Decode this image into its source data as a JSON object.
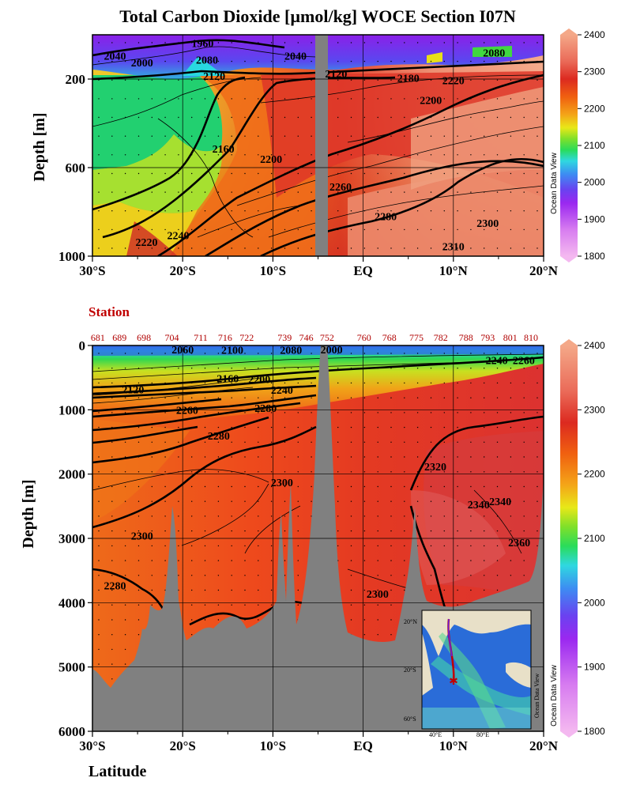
{
  "title": "Total Carbon Dioxide [µmol/kg]  WOCE Section I07N",
  "odv_label": "Ocean Data View",
  "latitude_label": "Latitude",
  "station_label": "Station",
  "chart_data": [
    {
      "type": "heatmap",
      "name": "upper",
      "ylabel": "Depth [m]",
      "x_ticks": [
        "30°S",
        "20°S",
        "10°S",
        "EQ",
        "10°N",
        "20°N"
      ],
      "x_tick_values": [
        -30,
        -20,
        -10,
        0,
        10,
        20
      ],
      "xlim": [
        -30,
        20
      ],
      "y_ticks": [
        "200",
        "600",
        "1000"
      ],
      "y_tick_values": [
        200,
        600,
        1000
      ],
      "ylim": [
        0,
        1000
      ],
      "contour_labels": [
        {
          "text": "1960",
          "x": -17.8,
          "y": 38
        },
        {
          "text": "2040",
          "x": -27.5,
          "y": 95
        },
        {
          "text": "2000",
          "x": -24.5,
          "y": 125
        },
        {
          "text": "2080",
          "x": -17.3,
          "y": 112
        },
        {
          "text": "2120",
          "x": -16.5,
          "y": 185
        },
        {
          "text": "2040",
          "x": -7.5,
          "y": 95
        },
        {
          "text": "2120",
          "x": -3,
          "y": 175
        },
        {
          "text": "2080",
          "x": 14.5,
          "y": 80
        },
        {
          "text": "2180",
          "x": 5,
          "y": 195
        },
        {
          "text": "2220",
          "x": 10,
          "y": 205
        },
        {
          "text": "2200",
          "x": 7.5,
          "y": 295
        },
        {
          "text": "2160",
          "x": -15.5,
          "y": 515
        },
        {
          "text": "2200",
          "x": -10.2,
          "y": 560
        },
        {
          "text": "2260",
          "x": -2.5,
          "y": 685
        },
        {
          "text": "2280",
          "x": 2.5,
          "y": 820
        },
        {
          "text": "2300",
          "x": 13.8,
          "y": 850
        },
        {
          "text": "2310",
          "x": 10,
          "y": 955
        },
        {
          "text": "2220",
          "x": -24,
          "y": 935
        },
        {
          "text": "2240",
          "x": -20.5,
          "y": 905
        }
      ],
      "colorbar": {
        "min": 1800,
        "max": 2400,
        "ticks": [
          1800,
          1900,
          2000,
          2100,
          2200,
          2300,
          2400
        ]
      }
    },
    {
      "type": "heatmap",
      "name": "lower",
      "ylabel": "Depth [m]",
      "x_ticks": [
        "30°S",
        "20°S",
        "10°S",
        "EQ",
        "10°N",
        "20°N"
      ],
      "x_tick_values": [
        -30,
        -20,
        -10,
        0,
        10,
        20
      ],
      "xlim": [
        -30,
        20
      ],
      "y_ticks": [
        "0",
        "1000",
        "2000",
        "3000",
        "4000",
        "5000",
        "6000"
      ],
      "y_tick_values": [
        0,
        1000,
        2000,
        3000,
        4000,
        5000,
        6000
      ],
      "ylim": [
        0,
        6000
      ],
      "stations": [
        {
          "label": "681",
          "lat": -29.4
        },
        {
          "label": "689",
          "lat": -27.0
        },
        {
          "label": "698",
          "lat": -24.3
        },
        {
          "label": "704",
          "lat": -21.2
        },
        {
          "label": "711",
          "lat": -18.0
        },
        {
          "label": "716",
          "lat": -15.3
        },
        {
          "label": "722",
          "lat": -12.9
        },
        {
          "label": "739",
          "lat": -8.7
        },
        {
          "label": "746",
          "lat": -6.3
        },
        {
          "label": "752",
          "lat": -4.0
        },
        {
          "label": "760",
          "lat": 0.1
        },
        {
          "label": "768",
          "lat": 2.9
        },
        {
          "label": "775",
          "lat": 5.9
        },
        {
          "label": "782",
          "lat": 8.6
        },
        {
          "label": "788",
          "lat": 11.4
        },
        {
          "label": "793",
          "lat": 13.8
        },
        {
          "label": "801",
          "lat": 16.3
        },
        {
          "label": "810",
          "lat": 18.6
        }
      ],
      "contour_labels": [
        {
          "text": "2060",
          "x": -20,
          "y": 60
        },
        {
          "text": "2100",
          "x": -14.5,
          "y": 70
        },
        {
          "text": "2080",
          "x": -8,
          "y": 70
        },
        {
          "text": "2000",
          "x": -3.5,
          "y": 60
        },
        {
          "text": "2240",
          "x": 14.8,
          "y": 230
        },
        {
          "text": "2260",
          "x": 17.8,
          "y": 230
        },
        {
          "text": "2120",
          "x": -25.5,
          "y": 680
        },
        {
          "text": "2160",
          "x": -15,
          "y": 510
        },
        {
          "text": "2200",
          "x": -11.5,
          "y": 520
        },
        {
          "text": "2240",
          "x": -9,
          "y": 690
        },
        {
          "text": "2260",
          "x": -19.5,
          "y": 1000
        },
        {
          "text": "2280",
          "x": -10.8,
          "y": 970
        },
        {
          "text": "2280",
          "x": -16,
          "y": 1400
        },
        {
          "text": "2320",
          "x": 8,
          "y": 1880
        },
        {
          "text": "2300",
          "x": -9,
          "y": 2130
        },
        {
          "text": "2340",
          "x": 12.8,
          "y": 2470
        },
        {
          "text": "2340",
          "x": 15.2,
          "y": 2420
        },
        {
          "text": "2300",
          "x": -24.5,
          "y": 2960
        },
        {
          "text": "2360",
          "x": 17.3,
          "y": 3060
        },
        {
          "text": "2280",
          "x": -27.5,
          "y": 3730
        },
        {
          "text": "2300",
          "x": 1.6,
          "y": 3860
        }
      ],
      "colorbar": {
        "min": 1800,
        "max": 2400,
        "ticks": [
          1800,
          1900,
          2000,
          2100,
          2200,
          2300,
          2400
        ]
      },
      "inset_map": {
        "lat_ticks": [
          "20°N",
          "20°S",
          "60°S"
        ],
        "lon_ticks": [
          "40°E",
          "80°E"
        ],
        "label": "Ocean Data View"
      }
    }
  ]
}
